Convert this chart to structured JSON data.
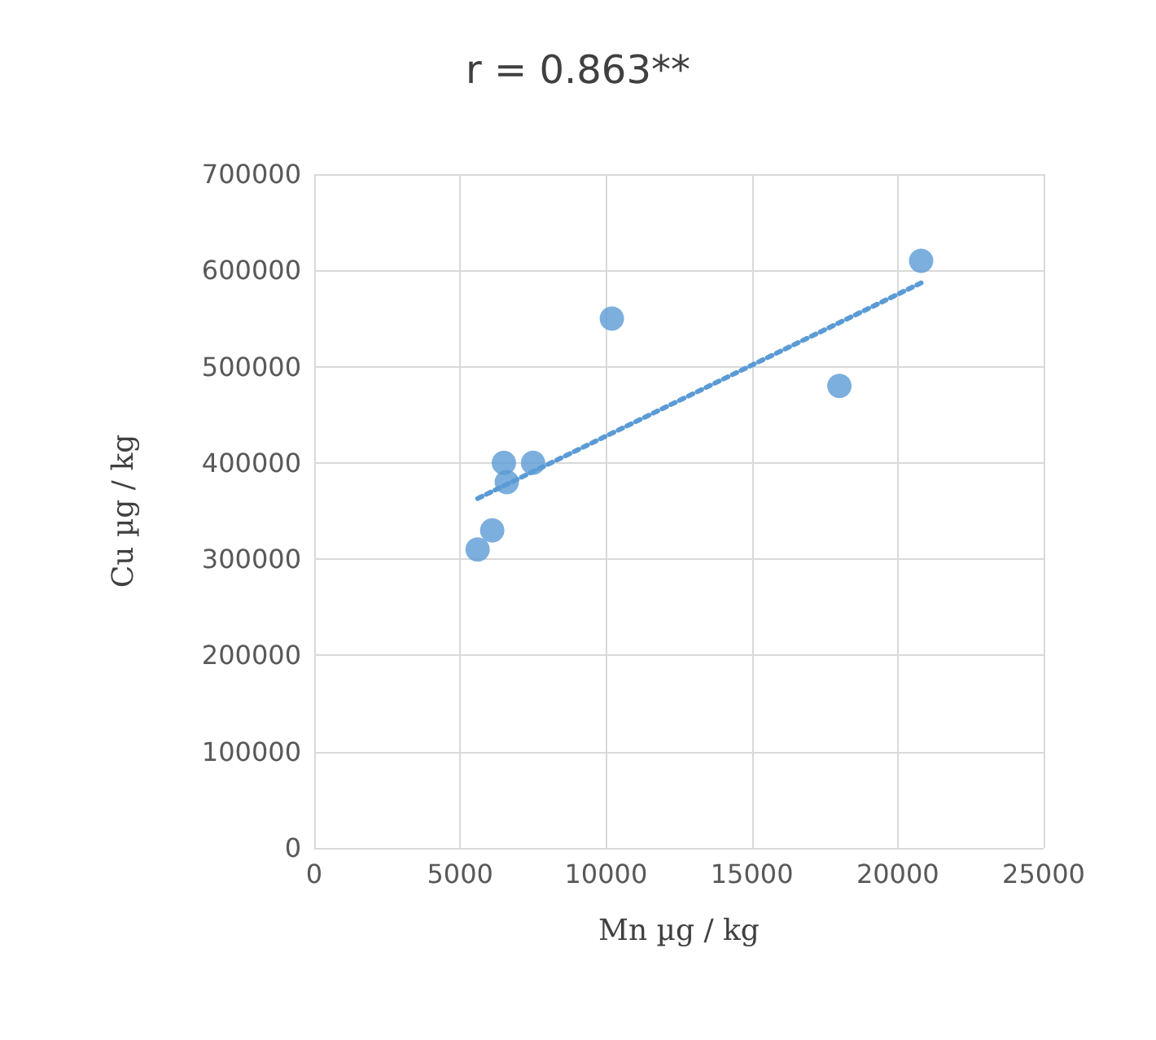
{
  "chart_data": {
    "type": "scatter",
    "title": "r = 0.863**",
    "xlabel": "Mn µg / kg",
    "ylabel": "Cu µg / kg",
    "xlim": [
      0,
      25000
    ],
    "xticks": [
      0,
      5000,
      10000,
      15000,
      20000,
      25000
    ],
    "ylim": [
      0,
      700000
    ],
    "yticks": [
      0,
      100000,
      200000,
      300000,
      400000,
      500000,
      600000,
      700000
    ],
    "grid": true,
    "marker": "circle",
    "series": [
      {
        "type": "scatter",
        "color": "#5b9bd5",
        "x": [
          5600,
          6100,
          6500,
          6600,
          7500,
          10200,
          18000,
          20800
        ],
        "values": [
          310000,
          330000,
          400000,
          380000,
          400000,
          550000,
          480000,
          610000
        ]
      },
      {
        "type": "line",
        "color": "#5b9bd5",
        "line_style": "dotted",
        "marker": "none",
        "x": [
          5600,
          20800
        ],
        "values": [
          363000,
          587000
        ]
      }
    ]
  }
}
